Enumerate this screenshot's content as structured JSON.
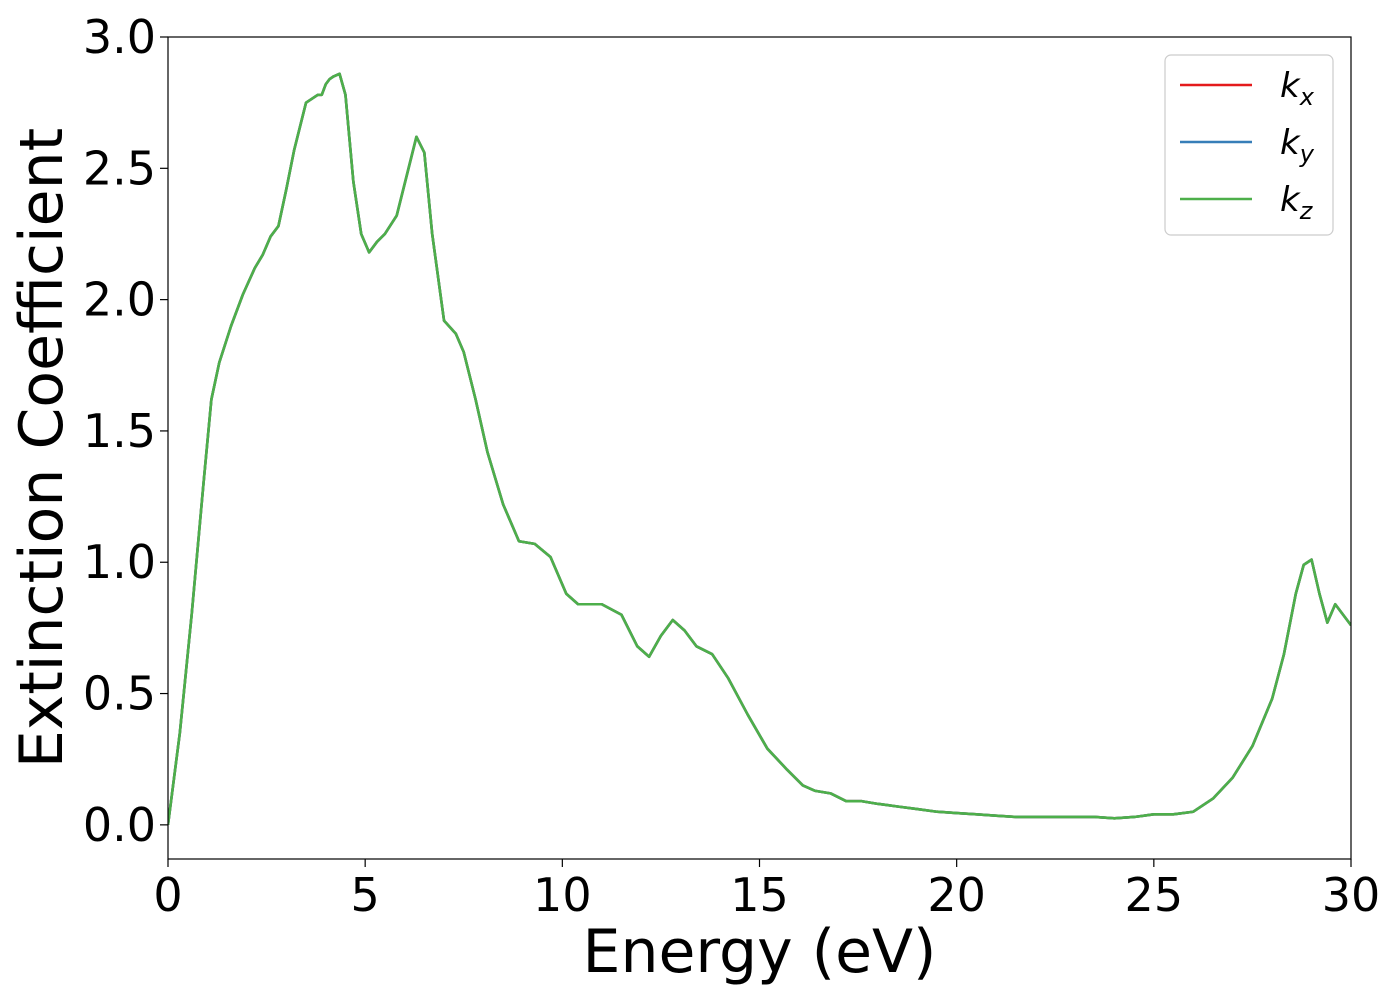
{
  "chart_data": {
    "type": "line",
    "xlabel": "Energy (eV)",
    "ylabel": "Extinction Coefficient",
    "xlim": [
      0,
      30
    ],
    "ylim": [
      -0.13,
      3.0
    ],
    "xticks": [
      "0",
      "5",
      "10",
      "15",
      "20",
      "25",
      "30"
    ],
    "yticks": [
      "0.0",
      "0.5",
      "1.0",
      "1.5",
      "2.0",
      "2.5",
      "3.0"
    ],
    "legend_position": "top-right",
    "grid": false,
    "series": [
      {
        "name": "k_x",
        "label_main": "k",
        "label_sub": "x",
        "color": "#e41a1c",
        "x": [
          0,
          0.3,
          0.6,
          0.9,
          1.1,
          1.3,
          1.6,
          1.9,
          2.2,
          2.4,
          2.6,
          2.8,
          3.0,
          3.2,
          3.5,
          3.8,
          3.9,
          4.0,
          4.1,
          4.2,
          4.35,
          4.5,
          4.7,
          4.9,
          5.1,
          5.3,
          5.5,
          5.8,
          6.1,
          6.3,
          6.5,
          6.7,
          7.0,
          7.3,
          7.5,
          7.8,
          8.1,
          8.5,
          8.9,
          9.3,
          9.7,
          10.1,
          10.4,
          10.7,
          11.0,
          11.5,
          11.9,
          12.2,
          12.5,
          12.8,
          13.1,
          13.4,
          13.8,
          14.2,
          14.7,
          15.2,
          15.7,
          16.1,
          16.4,
          16.8,
          17.2,
          17.6,
          18.0,
          18.5,
          19.0,
          19.5,
          20.0,
          20.5,
          21.0,
          21.5,
          22.0,
          22.5,
          23.0,
          23.5,
          24.0,
          24.5,
          25.0,
          25.5,
          26.0,
          26.5,
          27.0,
          27.5,
          28.0,
          28.3,
          28.6,
          28.8,
          29.0,
          29.2,
          29.4,
          29.6,
          29.8,
          30.0
        ],
        "y": [
          0,
          0.35,
          0.8,
          1.3,
          1.62,
          1.76,
          1.9,
          2.02,
          2.12,
          2.17,
          2.24,
          2.28,
          2.42,
          2.57,
          2.75,
          2.78,
          2.78,
          2.82,
          2.84,
          2.85,
          2.86,
          2.78,
          2.45,
          2.25,
          2.18,
          2.22,
          2.25,
          2.32,
          2.5,
          2.62,
          2.56,
          2.25,
          1.92,
          1.87,
          1.8,
          1.62,
          1.42,
          1.22,
          1.08,
          1.07,
          1.02,
          0.88,
          0.84,
          0.84,
          0.84,
          0.8,
          0.68,
          0.64,
          0.72,
          0.78,
          0.74,
          0.68,
          0.65,
          0.56,
          0.42,
          0.29,
          0.21,
          0.15,
          0.13,
          0.12,
          0.09,
          0.09,
          0.08,
          0.07,
          0.06,
          0.05,
          0.045,
          0.04,
          0.035,
          0.03,
          0.03,
          0.03,
          0.03,
          0.03,
          0.025,
          0.03,
          0.04,
          0.04,
          0.05,
          0.1,
          0.18,
          0.3,
          0.48,
          0.65,
          0.88,
          0.99,
          1.01,
          0.88,
          0.77,
          0.84,
          0.8,
          0.76
        ]
      },
      {
        "name": "k_y",
        "label_main": "k",
        "label_sub": "y",
        "color": "#377eb8",
        "x": [
          0,
          0.3,
          0.6,
          0.9,
          1.1,
          1.3,
          1.6,
          1.9,
          2.2,
          2.4,
          2.6,
          2.8,
          3.0,
          3.2,
          3.5,
          3.8,
          3.9,
          4.0,
          4.1,
          4.2,
          4.35,
          4.5,
          4.7,
          4.9,
          5.1,
          5.3,
          5.5,
          5.8,
          6.1,
          6.3,
          6.5,
          6.7,
          7.0,
          7.3,
          7.5,
          7.8,
          8.1,
          8.5,
          8.9,
          9.3,
          9.7,
          10.1,
          10.4,
          10.7,
          11.0,
          11.5,
          11.9,
          12.2,
          12.5,
          12.8,
          13.1,
          13.4,
          13.8,
          14.2,
          14.7,
          15.2,
          15.7,
          16.1,
          16.4,
          16.8,
          17.2,
          17.6,
          18.0,
          18.5,
          19.0,
          19.5,
          20.0,
          20.5,
          21.0,
          21.5,
          22.0,
          22.5,
          23.0,
          23.5,
          24.0,
          24.5,
          25.0,
          25.5,
          26.0,
          26.5,
          27.0,
          27.5,
          28.0,
          28.3,
          28.6,
          28.8,
          29.0,
          29.2,
          29.4,
          29.6,
          29.8,
          30.0
        ],
        "y": [
          0,
          0.35,
          0.8,
          1.3,
          1.62,
          1.76,
          1.9,
          2.02,
          2.12,
          2.17,
          2.24,
          2.28,
          2.42,
          2.57,
          2.75,
          2.78,
          2.78,
          2.82,
          2.84,
          2.85,
          2.86,
          2.78,
          2.45,
          2.25,
          2.18,
          2.22,
          2.25,
          2.32,
          2.5,
          2.62,
          2.56,
          2.25,
          1.92,
          1.87,
          1.8,
          1.62,
          1.42,
          1.22,
          1.08,
          1.07,
          1.02,
          0.88,
          0.84,
          0.84,
          0.84,
          0.8,
          0.68,
          0.64,
          0.72,
          0.78,
          0.74,
          0.68,
          0.65,
          0.56,
          0.42,
          0.29,
          0.21,
          0.15,
          0.13,
          0.12,
          0.09,
          0.09,
          0.08,
          0.07,
          0.06,
          0.05,
          0.045,
          0.04,
          0.035,
          0.03,
          0.03,
          0.03,
          0.03,
          0.03,
          0.025,
          0.03,
          0.04,
          0.04,
          0.05,
          0.1,
          0.18,
          0.3,
          0.48,
          0.65,
          0.88,
          0.99,
          1.01,
          0.88,
          0.77,
          0.84,
          0.8,
          0.76
        ]
      },
      {
        "name": "k_z",
        "label_main": "k",
        "label_sub": "z",
        "color": "#4daf4a",
        "x": [
          0,
          0.3,
          0.6,
          0.9,
          1.1,
          1.3,
          1.6,
          1.9,
          2.2,
          2.4,
          2.6,
          2.8,
          3.0,
          3.2,
          3.5,
          3.8,
          3.9,
          4.0,
          4.1,
          4.2,
          4.35,
          4.5,
          4.7,
          4.9,
          5.1,
          5.3,
          5.5,
          5.8,
          6.1,
          6.3,
          6.5,
          6.7,
          7.0,
          7.3,
          7.5,
          7.8,
          8.1,
          8.5,
          8.9,
          9.3,
          9.7,
          10.1,
          10.4,
          10.7,
          11.0,
          11.5,
          11.9,
          12.2,
          12.5,
          12.8,
          13.1,
          13.4,
          13.8,
          14.2,
          14.7,
          15.2,
          15.7,
          16.1,
          16.4,
          16.8,
          17.2,
          17.6,
          18.0,
          18.5,
          19.0,
          19.5,
          20.0,
          20.5,
          21.0,
          21.5,
          22.0,
          22.5,
          23.0,
          23.5,
          24.0,
          24.5,
          25.0,
          25.5,
          26.0,
          26.5,
          27.0,
          27.5,
          28.0,
          28.3,
          28.6,
          28.8,
          29.0,
          29.2,
          29.4,
          29.6,
          29.8,
          30.0
        ],
        "y": [
          0,
          0.35,
          0.8,
          1.3,
          1.62,
          1.76,
          1.9,
          2.02,
          2.12,
          2.17,
          2.24,
          2.28,
          2.42,
          2.57,
          2.75,
          2.78,
          2.78,
          2.82,
          2.84,
          2.85,
          2.86,
          2.78,
          2.45,
          2.25,
          2.18,
          2.22,
          2.25,
          2.32,
          2.5,
          2.62,
          2.56,
          2.25,
          1.92,
          1.87,
          1.8,
          1.62,
          1.42,
          1.22,
          1.08,
          1.07,
          1.02,
          0.88,
          0.84,
          0.84,
          0.84,
          0.8,
          0.68,
          0.64,
          0.72,
          0.78,
          0.74,
          0.68,
          0.65,
          0.56,
          0.42,
          0.29,
          0.21,
          0.15,
          0.13,
          0.12,
          0.09,
          0.09,
          0.08,
          0.07,
          0.06,
          0.05,
          0.045,
          0.04,
          0.035,
          0.03,
          0.03,
          0.03,
          0.03,
          0.03,
          0.025,
          0.03,
          0.04,
          0.04,
          0.05,
          0.1,
          0.18,
          0.3,
          0.48,
          0.65,
          0.88,
          0.99,
          1.01,
          0.88,
          0.77,
          0.84,
          0.8,
          0.76
        ]
      }
    ]
  }
}
